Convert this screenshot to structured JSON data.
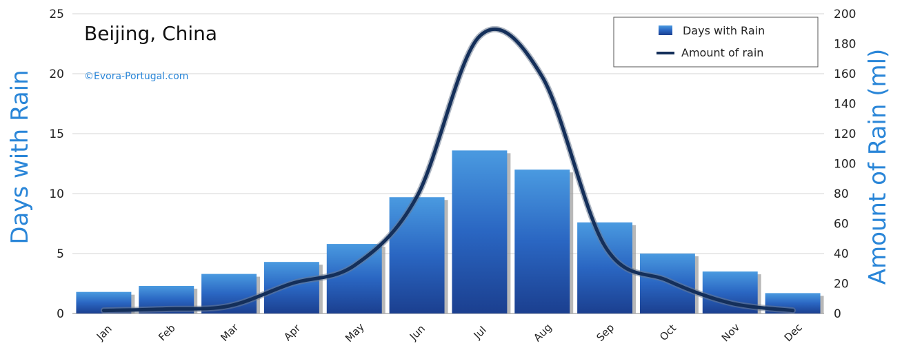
{
  "chart_data": {
    "type": "bar-line",
    "title": "Beijing, China",
    "credit": "©Evora-Portugal.com",
    "categories": [
      "Jan",
      "Feb",
      "Mar",
      "Apr",
      "May",
      "Jun",
      "Jul",
      "Aug",
      "Sep",
      "Oct",
      "Nov",
      "Dec"
    ],
    "series": [
      {
        "name": "Days with Rain",
        "type": "bar",
        "axis": "left",
        "values": [
          1.8,
          2.3,
          3.3,
          4.3,
          5.8,
          9.7,
          13.6,
          12.0,
          7.6,
          5.0,
          3.5,
          1.7
        ]
      },
      {
        "name": "Amount of rain",
        "type": "line",
        "axis": "right",
        "values": [
          2,
          3,
          5,
          20,
          32,
          78,
          185,
          158,
          45,
          22,
          7,
          2
        ]
      }
    ],
    "ylabel_left": "Days with Rain",
    "ylabel_right": "Amount of Rain (ml)",
    "ylim_left": [
      0,
      25
    ],
    "yticks_left": [
      0,
      5,
      10,
      15,
      20,
      25
    ],
    "ylim_right": [
      0,
      200
    ],
    "yticks_right": [
      0,
      20,
      40,
      60,
      80,
      100,
      120,
      140,
      160,
      180,
      200
    ],
    "grid": true,
    "legend_position": "top-right",
    "colors": {
      "bar_top": "#4a9ae0",
      "bar_bottom": "#1b3f8f",
      "line": "#142f5a",
      "axis_title": "#2a86d8"
    }
  }
}
